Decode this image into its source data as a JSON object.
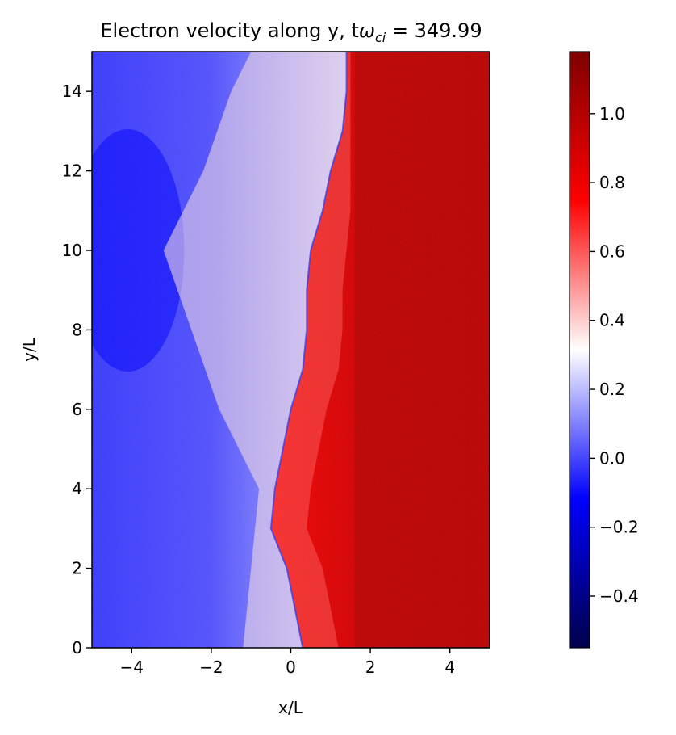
{
  "chart_data": {
    "type": "heatmap",
    "title": {
      "prefix": "Electron velocity along y, t",
      "symbol": "ω",
      "subscript": "ci",
      "suffix": " = 349.99"
    },
    "xlabel": "x/L",
    "ylabel": "y/L",
    "xlim": [
      -5,
      5
    ],
    "ylim": [
      0,
      15
    ],
    "x_ticks": [
      -4,
      -2,
      0,
      2,
      4
    ],
    "x_tick_labels": [
      "−4",
      "−2",
      "0",
      "2",
      "4"
    ],
    "y_ticks": [
      0,
      2,
      4,
      6,
      8,
      10,
      12,
      14
    ],
    "y_tick_labels": [
      "0",
      "2",
      "4",
      "6",
      "8",
      "10",
      "12",
      "14"
    ],
    "colorbar": {
      "colormap": "seismic",
      "range": [
        -0.55,
        1.18
      ],
      "ticks": [
        -0.4,
        -0.2,
        0.0,
        0.2,
        0.4,
        0.6,
        0.8,
        1.0
      ],
      "tick_labels": [
        "−0.4",
        "−0.2",
        "0.0",
        "0.2",
        "0.4",
        "0.6",
        "0.8",
        "1.0"
      ]
    },
    "field": {
      "description_free": true,
      "left_region_value": 0.0,
      "right_region_value": 0.95,
      "interface_profile": [
        {
          "y": 0,
          "x": 0.3
        },
        {
          "y": 1,
          "x": 0.1
        },
        {
          "y": 2,
          "x": -0.1
        },
        {
          "y": 3,
          "x": -0.5
        },
        {
          "y": 4,
          "x": -0.4
        },
        {
          "y": 5,
          "x": -0.2
        },
        {
          "y": 6,
          "x": 0.0
        },
        {
          "y": 7,
          "x": 0.3
        },
        {
          "y": 8,
          "x": 0.4
        },
        {
          "y": 9,
          "x": 0.4
        },
        {
          "y": 10,
          "x": 0.5
        },
        {
          "y": 11,
          "x": 0.8
        },
        {
          "y": 12,
          "x": 1.0
        },
        {
          "y": 13,
          "x": 1.3
        },
        {
          "y": 14,
          "x": 1.4
        },
        {
          "y": 15,
          "x": 1.4
        }
      ],
      "mixing_profile": [
        {
          "y": 0,
          "x": -1.2
        },
        {
          "y": 2,
          "x": -1.0
        },
        {
          "y": 4,
          "x": -0.8
        },
        {
          "y": 6,
          "x": -1.8
        },
        {
          "y": 8,
          "x": -2.5
        },
        {
          "y": 10,
          "x": -3.2
        },
        {
          "y": 12,
          "x": -2.2
        },
        {
          "y": 14,
          "x": -1.5
        },
        {
          "y": 15,
          "x": -1.0
        }
      ]
    }
  }
}
